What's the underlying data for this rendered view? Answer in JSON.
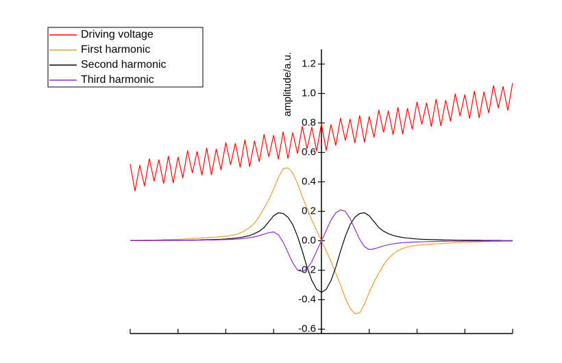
{
  "chart_data": {
    "type": "line",
    "y_label": "amplitude/a.u.",
    "xlim": [
      -4,
      4
    ],
    "xticks": [
      -4,
      -3,
      -2,
      -1,
      0,
      1,
      2,
      3,
      4
    ],
    "ylim": [
      -0.63,
      1.3
    ],
    "yticks": [
      -0.6,
      -0.4,
      -0.2,
      {
        "value": 0,
        "label": "0.0"
      },
      0.2,
      0.4,
      0.6,
      0.8,
      {
        "value": 1,
        "label": "1.0"
      },
      1.2
    ],
    "x": [
      -4.0,
      -3.9,
      -3.8,
      -3.7,
      -3.6,
      -3.5,
      -3.4,
      -3.3,
      -3.2,
      -3.1,
      -3.0,
      -2.9,
      -2.8,
      -2.7,
      -2.6,
      -2.5,
      -2.4,
      -2.3,
      -2.2,
      -2.1,
      -2.0,
      -1.9,
      -1.8,
      -1.7,
      -1.6,
      -1.5,
      -1.4,
      -1.3,
      -1.2,
      -1.1,
      -1.0,
      -0.9,
      -0.8,
      -0.7,
      -0.6,
      -0.5,
      -0.4,
      -0.3,
      -0.2,
      -0.1,
      0.0,
      0.1,
      0.2,
      0.3,
      0.4,
      0.5,
      0.6,
      0.7,
      0.8,
      0.9,
      1.0,
      1.1,
      1.2,
      1.3,
      1.4,
      1.5,
      1.6,
      1.7,
      1.8,
      1.9,
      2.0,
      2.1,
      2.2,
      2.3,
      2.4,
      2.5,
      2.6,
      2.7,
      2.8,
      2.9,
      3.0,
      3.1,
      3.2,
      3.3,
      3.4,
      3.5,
      3.6,
      3.7,
      3.8,
      3.9,
      4.0
    ],
    "series": [
      {
        "name": "Driving voltage",
        "color": "#ff0000",
        "values": [
          0.52,
          0.337,
          0.514,
          0.371,
          0.558,
          0.405,
          0.551,
          0.388,
          0.575,
          0.392,
          0.569,
          0.426,
          0.613,
          0.46,
          0.607,
          0.444,
          0.63,
          0.447,
          0.624,
          0.481,
          0.668,
          0.515,
          0.662,
          0.499,
          0.686,
          0.503,
          0.679,
          0.536,
          0.723,
          0.57,
          0.717,
          0.554,
          0.741,
          0.558,
          0.735,
          0.592,
          0.778,
          0.625,
          0.772,
          0.609,
          0.796,
          0.613,
          0.79,
          0.647,
          0.834,
          0.681,
          0.827,
          0.664,
          0.851,
          0.668,
          0.845,
          0.702,
          0.889,
          0.736,
          0.883,
          0.72,
          0.906,
          0.723,
          0.9,
          0.757,
          0.944,
          0.791,
          0.938,
          0.775,
          0.962,
          0.779,
          0.955,
          0.812,
          0.999,
          0.846,
          0.993,
          0.83,
          1.017,
          0.834,
          1.011,
          0.868,
          1.054,
          0.901,
          1.048,
          0.885,
          1.072
        ]
      },
      {
        "name": "First harmonic",
        "color": "#f39a2e",
        "values": [
          0.002,
          0.003,
          0.003,
          0.004,
          0.004,
          0.005,
          0.006,
          0.007,
          0.008,
          0.009,
          0.01,
          0.011,
          0.013,
          0.015,
          0.017,
          0.019,
          0.021,
          0.023,
          0.025,
          0.028,
          0.031,
          0.036,
          0.042,
          0.052,
          0.068,
          0.09,
          0.12,
          0.165,
          0.22,
          0.28,
          0.35,
          0.43,
          0.49,
          0.495,
          0.46,
          0.39,
          0.3,
          0.22,
          0.14,
          0.07,
          0,
          -0.07,
          -0.14,
          -0.22,
          -0.3,
          -0.39,
          -0.46,
          -0.495,
          -0.49,
          -0.43,
          -0.35,
          -0.28,
          -0.22,
          -0.165,
          -0.12,
          -0.09,
          -0.068,
          -0.052,
          -0.042,
          -0.036,
          -0.031,
          -0.028,
          -0.025,
          -0.023,
          -0.021,
          -0.019,
          -0.017,
          -0.015,
          -0.013,
          -0.011,
          -0.01,
          -0.009,
          -0.008,
          -0.007,
          -0.006,
          -0.005,
          -0.004,
          -0.004,
          -0.003,
          -0.003,
          -0.002
        ]
      },
      {
        "name": "Second harmonic",
        "color": "#000000",
        "values": [
          0.001,
          0.001,
          0.001,
          0.002,
          0.002,
          0.002,
          0.002,
          0.003,
          0.003,
          0.003,
          0.003,
          0.004,
          0.004,
          0.005,
          0.005,
          0.006,
          0.007,
          0.008,
          0.009,
          0.01,
          0.012,
          0.015,
          0.018,
          0.022,
          0.028,
          0.036,
          0.048,
          0.065,
          0.09,
          0.13,
          0.17,
          0.19,
          0.185,
          0.16,
          0.11,
          0.03,
          -0.07,
          -0.18,
          -0.27,
          -0.33,
          -0.35,
          -0.33,
          -0.27,
          -0.18,
          -0.07,
          0.03,
          0.11,
          0.16,
          0.185,
          0.19,
          0.17,
          0.13,
          0.09,
          0.065,
          0.048,
          0.036,
          0.028,
          0.022,
          0.018,
          0.015,
          0.012,
          0.01,
          0.009,
          0.008,
          0.007,
          0.006,
          0.005,
          0.005,
          0.004,
          0.004,
          0.003,
          0.003,
          0.003,
          0.003,
          0.002,
          0.002,
          0.002,
          0.002,
          0.001,
          0.001,
          0.001
        ]
      },
      {
        "name": "Third harmonic",
        "color": "#8e2bd6",
        "values": [
          0.001,
          0.001,
          0.001,
          0.001,
          0.001,
          0.002,
          0.002,
          0.002,
          0.002,
          0.002,
          0.002,
          0.003,
          0.003,
          0.003,
          0.004,
          0.004,
          0.005,
          0.005,
          0.006,
          0.007,
          0.008,
          0.009,
          0.011,
          0.013,
          0.016,
          0.021,
          0.027,
          0.035,
          0.045,
          0.055,
          0.06,
          0.04,
          -0.01,
          -0.08,
          -0.15,
          -0.2,
          -0.21,
          -0.19,
          -0.14,
          -0.07,
          0,
          0.07,
          0.14,
          0.19,
          0.21,
          0.2,
          0.15,
          0.08,
          0.01,
          -0.04,
          -0.06,
          -0.055,
          -0.045,
          -0.035,
          -0.027,
          -0.021,
          -0.016,
          -0.013,
          -0.011,
          -0.009,
          -0.008,
          -0.007,
          -0.006,
          -0.005,
          -0.005,
          -0.004,
          -0.004,
          -0.003,
          -0.003,
          -0.003,
          -0.002,
          -0.002,
          -0.002,
          -0.002,
          -0.002,
          -0.002,
          -0.001,
          -0.001,
          -0.001,
          -0.001,
          -0.001
        ]
      }
    ]
  }
}
